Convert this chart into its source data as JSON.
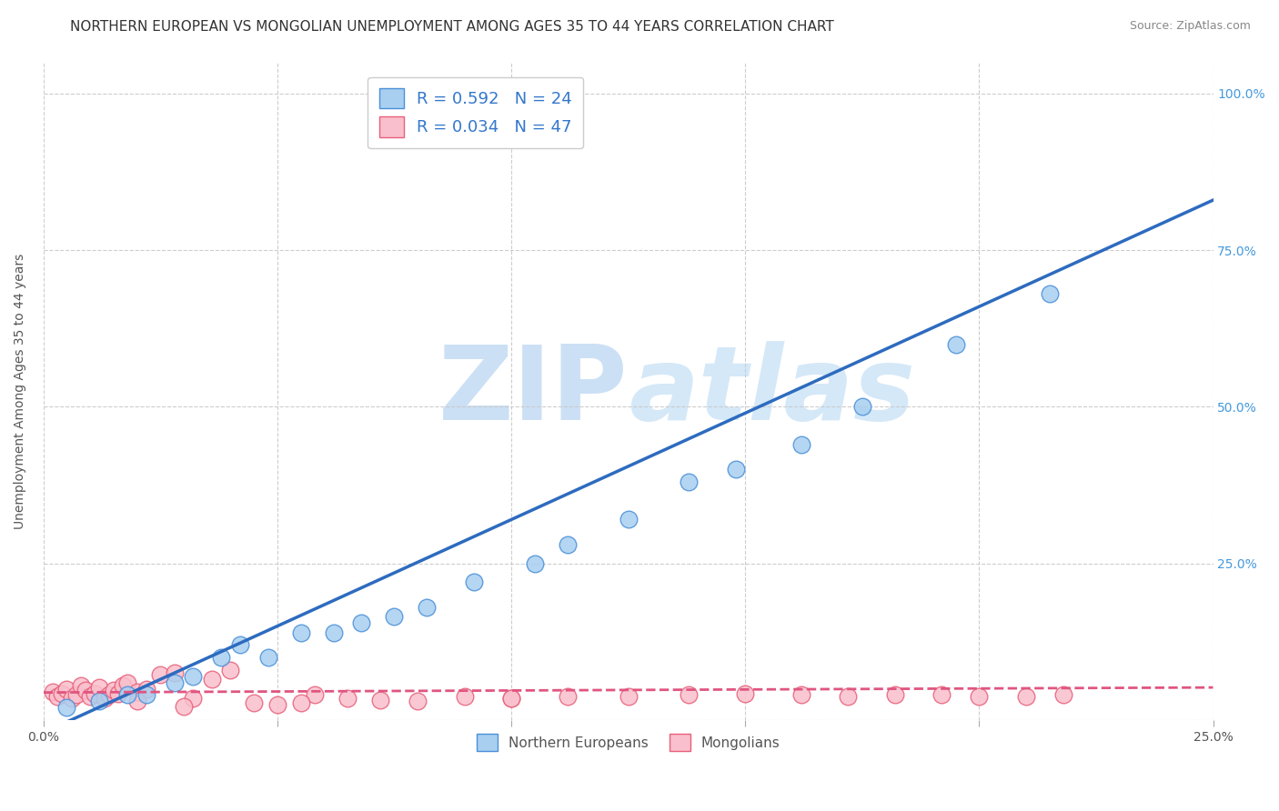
{
  "title": "NORTHERN EUROPEAN VS MONGOLIAN UNEMPLOYMENT AMONG AGES 35 TO 44 YEARS CORRELATION CHART",
  "source": "Source: ZipAtlas.com",
  "ylabel": "Unemployment Among Ages 35 to 44 years",
  "xlim": [
    0.0,
    0.25
  ],
  "ylim": [
    0.0,
    1.05
  ],
  "x_ticks": [
    0.0,
    0.05,
    0.1,
    0.15,
    0.2,
    0.25
  ],
  "y_ticks": [
    0.0,
    0.25,
    0.5,
    0.75,
    1.0
  ],
  "blue_color": "#a8cff0",
  "pink_color": "#f9bfcc",
  "blue_edge_color": "#4a90d9",
  "pink_edge_color": "#e8607a",
  "blue_line_color": "#2d6bbf",
  "pink_line_color": "#e05580",
  "watermark_zip": "ZIP",
  "watermark_atlas": "atlas",
  "watermark_color": "#cce0f5",
  "background_color": "#ffffff",
  "grid_color": "#c8c8c8",
  "legend_r1": "R = 0.592",
  "legend_n1": "N = 24",
  "legend_r2": "R = 0.034",
  "legend_n2": "N = 47",
  "blue_scatter_x": [
    0.005,
    0.012,
    0.018,
    0.022,
    0.028,
    0.032,
    0.038,
    0.042,
    0.048,
    0.055,
    0.062,
    0.068,
    0.075,
    0.082,
    0.092,
    0.105,
    0.112,
    0.125,
    0.138,
    0.148,
    0.162,
    0.175,
    0.195,
    0.215
  ],
  "blue_scatter_y": [
    0.02,
    0.03,
    0.04,
    0.04,
    0.06,
    0.07,
    0.1,
    0.12,
    0.1,
    0.14,
    0.14,
    0.155,
    0.165,
    0.18,
    0.22,
    0.25,
    0.28,
    0.32,
    0.38,
    0.4,
    0.44,
    0.5,
    0.6,
    0.68
  ],
  "pink_scatter_x": [
    0.002,
    0.003,
    0.004,
    0.005,
    0.006,
    0.007,
    0.008,
    0.009,
    0.01,
    0.011,
    0.012,
    0.013,
    0.014,
    0.015,
    0.016,
    0.017,
    0.018,
    0.02,
    0.022,
    0.025,
    0.028,
    0.032,
    0.036,
    0.04,
    0.045,
    0.05,
    0.058,
    0.065,
    0.072,
    0.08,
    0.09,
    0.1,
    0.112,
    0.125,
    0.138,
    0.15,
    0.162,
    0.172,
    0.182,
    0.192,
    0.2,
    0.21,
    0.218,
    0.1,
    0.055,
    0.03,
    0.02
  ],
  "pink_scatter_y": [
    0.045,
    0.038,
    0.042,
    0.05,
    0.035,
    0.04,
    0.055,
    0.048,
    0.038,
    0.042,
    0.052,
    0.035,
    0.04,
    0.048,
    0.042,
    0.055,
    0.06,
    0.045,
    0.05,
    0.072,
    0.075,
    0.035,
    0.065,
    0.08,
    0.028,
    0.025,
    0.04,
    0.035,
    0.032,
    0.03,
    0.038,
    0.035,
    0.038,
    0.038,
    0.04,
    0.042,
    0.04,
    0.038,
    0.04,
    0.04,
    0.038,
    0.038,
    0.04,
    0.035,
    0.028,
    0.022,
    0.03
  ],
  "blue_line_x0": 0.0,
  "blue_line_y0": -0.02,
  "blue_line_x1": 0.25,
  "blue_line_y1": 0.83,
  "pink_line_x0": 0.0,
  "pink_line_y0": 0.044,
  "pink_line_x1": 0.25,
  "pink_line_y1": 0.052,
  "title_fontsize": 11,
  "axis_label_fontsize": 10,
  "tick_fontsize": 10,
  "legend_fontsize": 13
}
